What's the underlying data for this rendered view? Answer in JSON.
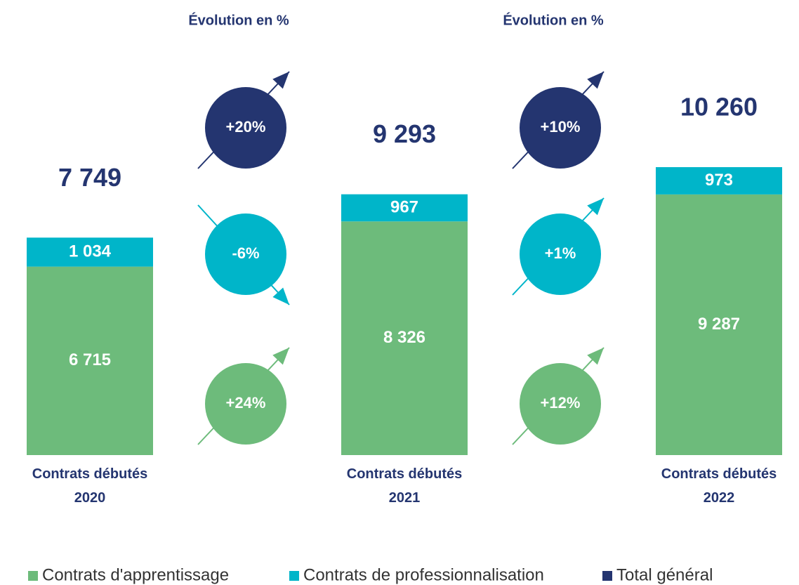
{
  "chart_data": {
    "type": "bar",
    "stacked": true,
    "categories": [
      "Contrats débutés 2020",
      "Contrats débutés 2021",
      "Contrats débutés 2022"
    ],
    "series": [
      {
        "name": "Contrats d'apprentissage",
        "color": "#6dbb7b",
        "values": [
          6715,
          8326,
          9287
        ],
        "value_labels": [
          "6 715",
          "8 326",
          "9 287"
        ]
      },
      {
        "name": "Contrats de professionnalisation",
        "color": "#00b5c9",
        "values": [
          1034,
          967,
          973
        ],
        "value_labels": [
          "1 034",
          "967",
          "973"
        ]
      },
      {
        "name": "Total général",
        "color": "#243570",
        "values": [
          7749,
          9293,
          10260
        ],
        "value_labels": [
          "7 749",
          "9 293",
          "10 260"
        ],
        "total": true
      }
    ],
    "evolutions": [
      {
        "title": "Évolution en %",
        "changes": [
          {
            "value": 24,
            "label": "+24%"
          },
          {
            "value": -6,
            "label": "-6%"
          },
          {
            "value": 20,
            "label": "+20%"
          }
        ]
      },
      {
        "title": "Évolution en %",
        "changes": [
          {
            "value": 12,
            "label": "+12%"
          },
          {
            "value": 1,
            "label": "+1%"
          },
          {
            "value": 10,
            "label": "+10%"
          }
        ]
      }
    ],
    "legend": "bottom"
  }
}
